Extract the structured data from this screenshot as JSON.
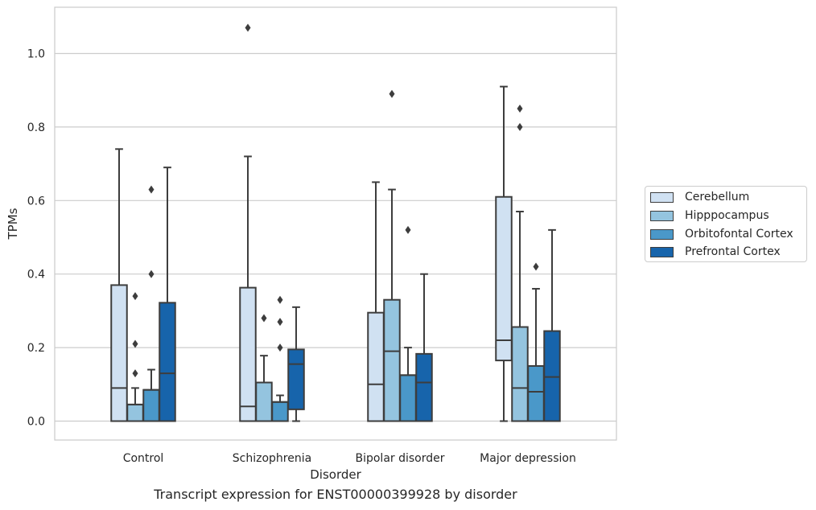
{
  "figure": {
    "caption": "Transcript expression for ENST00000399928 by disorder"
  },
  "chart_data": {
    "type": "box",
    "xlabel": "Disorder",
    "ylabel": "TPMs",
    "ylim": [
      -0.05,
      1.13
    ],
    "yticks": [
      0.0,
      0.2,
      0.4,
      0.6,
      0.8,
      1.0
    ],
    "ytick_labels": [
      "0.0",
      "0.2",
      "0.4",
      "0.6",
      "0.8",
      "1.0"
    ],
    "grid": "horizontal",
    "legend_position": "right",
    "categories": [
      "Control",
      "Schizophrenia",
      "Bipolar disorder",
      "Major depression"
    ],
    "series": [
      {
        "name": "Cerebellum",
        "color": "#d0e1f2",
        "boxes": [
          {
            "whislo": 0.0,
            "q1": 0.0,
            "med": 0.09,
            "q3": 0.37,
            "whishi": 0.74,
            "fliers": []
          },
          {
            "whislo": 0.0,
            "q1": 0.0,
            "med": 0.04,
            "q3": 0.363,
            "whishi": 0.72,
            "fliers": [
              1.07
            ]
          },
          {
            "whislo": 0.0,
            "q1": 0.0,
            "med": 0.1,
            "q3": 0.295,
            "whishi": 0.65,
            "fliers": []
          },
          {
            "whislo": 0.0,
            "q1": 0.165,
            "med": 0.22,
            "q3": 0.61,
            "whishi": 0.91,
            "fliers": []
          }
        ]
      },
      {
        "name": "Hipppocampus",
        "color": "#94c4df",
        "boxes": [
          {
            "whislo": 0.0,
            "q1": 0.0,
            "med": 0.045,
            "q3": 0.045,
            "whishi": 0.09,
            "fliers": [
              0.13,
              0.21,
              0.34
            ]
          },
          {
            "whislo": 0.0,
            "q1": 0.0,
            "med": 0.105,
            "q3": 0.105,
            "whishi": 0.178,
            "fliers": [
              0.28
            ]
          },
          {
            "whislo": 0.0,
            "q1": 0.0,
            "med": 0.19,
            "q3": 0.33,
            "whishi": 0.63,
            "fliers": [
              0.89
            ]
          },
          {
            "whislo": 0.0,
            "q1": 0.0,
            "med": 0.09,
            "q3": 0.256,
            "whishi": 0.57,
            "fliers": [
              0.8,
              0.85
            ]
          }
        ]
      },
      {
        "name": "Orbitofontal Cortex",
        "color": "#4a98c9",
        "boxes": [
          {
            "whislo": 0.0,
            "q1": 0.0,
            "med": 0.085,
            "q3": 0.085,
            "whishi": 0.14,
            "fliers": [
              0.4,
              0.63
            ]
          },
          {
            "whislo": 0.0,
            "q1": 0.0,
            "med": 0.052,
            "q3": 0.052,
            "whishi": 0.07,
            "fliers": [
              0.2,
              0.27,
              0.33
            ]
          },
          {
            "whislo": 0.0,
            "q1": 0.0,
            "med": 0.125,
            "q3": 0.125,
            "whishi": 0.2,
            "fliers": [
              0.52
            ]
          },
          {
            "whislo": 0.0,
            "q1": 0.0,
            "med": 0.08,
            "q3": 0.15,
            "whishi": 0.36,
            "fliers": [
              0.42
            ]
          }
        ]
      },
      {
        "name": "Prefrontal Cortex",
        "color": "#1764ab",
        "boxes": [
          {
            "whislo": 0.0,
            "q1": 0.0,
            "med": 0.13,
            "q3": 0.322,
            "whishi": 0.69,
            "fliers": []
          },
          {
            "whislo": 0.0,
            "q1": 0.032,
            "med": 0.155,
            "q3": 0.195,
            "whishi": 0.31,
            "fliers": []
          },
          {
            "whislo": 0.0,
            "q1": 0.0,
            "med": 0.105,
            "q3": 0.183,
            "whishi": 0.4,
            "fliers": []
          },
          {
            "whislo": 0.0,
            "q1": 0.0,
            "med": 0.12,
            "q3": 0.245,
            "whishi": 0.52,
            "fliers": []
          }
        ]
      }
    ]
  }
}
